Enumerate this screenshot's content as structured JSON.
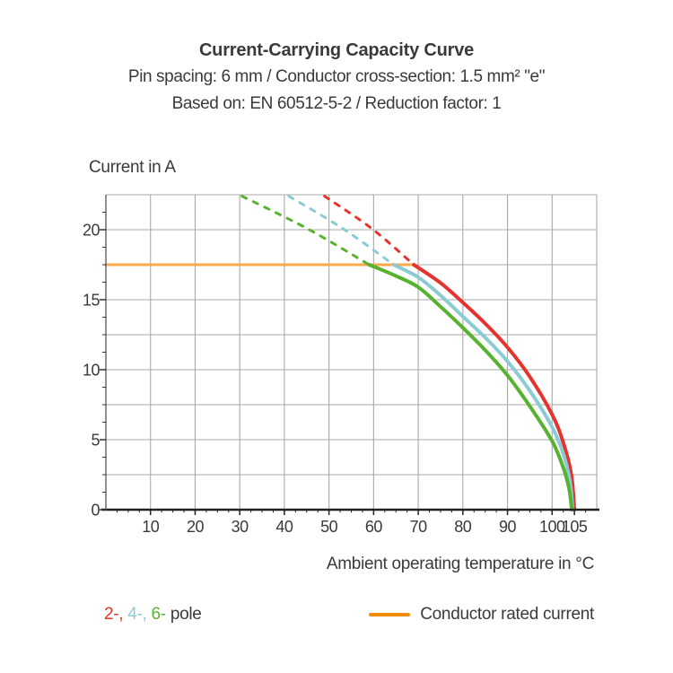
{
  "header": {
    "title": "Current-Carrying Capacity Curve",
    "subtitle_spec": "Pin spacing: 6 mm / Conductor cross-section: 1.5 mm² \"e\"",
    "subtitle_basis": "Based on: EN 60512-5-2 / Reduction factor: 1"
  },
  "legend": {
    "pole_items": [
      {
        "label": "2-,",
        "color": "#E5332D"
      },
      {
        "label": "4-,",
        "color": "#8BCBD3"
      },
      {
        "label": "6-",
        "color": "#57B32F"
      }
    ],
    "pole_suffix": "pole",
    "rated_label": "Conductor rated current",
    "rated_color": "#F28C00"
  },
  "colors": {
    "pole_2": "#E5332D",
    "pole_4": "#8BCBD3",
    "pole_6": "#57B32F",
    "rated_current_line": "#F9A94B",
    "grid": "#A9A9A9",
    "axis": "#222222",
    "text": "#3A3A39"
  },
  "chart_data": {
    "type": "line",
    "title": "Current-Carrying Capacity Curve",
    "xlabel": "Ambient operating temperature in °C",
    "ylabel": "Current in A",
    "xlim": [
      0,
      110
    ],
    "ylim": [
      0,
      22.5
    ],
    "x_tick_labels": [
      10,
      20,
      30,
      40,
      50,
      60,
      70,
      80,
      90,
      100,
      105
    ],
    "y_tick_labels": [
      0,
      5,
      10,
      15,
      20
    ],
    "x_grid_step": 10,
    "y_grid_step": 2.5,
    "x_minor_step": 2.5,
    "y_minor_step": 1.25,
    "grid": true,
    "legend_position": "bottom",
    "series": [
      {
        "name": "conductor-rated-current",
        "color": "#F9A94B",
        "style": "solid",
        "width": 3,
        "points": [
          [
            0,
            17.5
          ],
          [
            69,
            17.5
          ]
        ]
      },
      {
        "name": "2-pole-extrapolation",
        "color": "#E5332D",
        "style": "dashed",
        "width": 3,
        "points": [
          [
            49,
            22.4
          ],
          [
            59.5,
            20.1
          ],
          [
            69,
            17.5
          ]
        ]
      },
      {
        "name": "4-pole-extrapolation",
        "color": "#8BCBD3",
        "style": "dashed",
        "width": 3,
        "points": [
          [
            41,
            22.4
          ],
          [
            53,
            20.1
          ],
          [
            64.5,
            17.5
          ]
        ]
      },
      {
        "name": "6-pole-extrapolation",
        "color": "#57B32F",
        "style": "dashed",
        "width": 3,
        "points": [
          [
            30.5,
            22.4
          ],
          [
            45,
            20.1
          ],
          [
            59,
            17.5
          ]
        ]
      },
      {
        "name": "2-pole",
        "color": "#E5332D",
        "style": "solid",
        "width": 4,
        "points": [
          [
            69,
            17.5
          ],
          [
            75,
            16.2
          ],
          [
            80,
            14.8
          ],
          [
            85,
            13.3
          ],
          [
            90,
            11.6
          ],
          [
            95,
            9.5
          ],
          [
            100,
            6.8
          ],
          [
            102.5,
            4.8
          ],
          [
            104.3,
            2.5
          ],
          [
            105,
            0
          ]
        ]
      },
      {
        "name": "4-pole",
        "color": "#8BCBD3",
        "style": "solid",
        "width": 4,
        "points": [
          [
            64.5,
            17.5
          ],
          [
            70,
            16.6
          ],
          [
            75,
            15.3
          ],
          [
            80,
            13.8
          ],
          [
            85,
            12.3
          ],
          [
            90,
            10.6
          ],
          [
            95,
            8.5
          ],
          [
            100,
            5.9
          ],
          [
            102.5,
            4.0
          ],
          [
            104,
            2.0
          ],
          [
            104.6,
            0
          ]
        ]
      },
      {
        "name": "6-pole",
        "color": "#57B32F",
        "style": "solid",
        "width": 4,
        "points": [
          [
            59,
            17.5
          ],
          [
            65,
            16.7
          ],
          [
            70,
            15.9
          ],
          [
            75,
            14.5
          ],
          [
            80,
            13.0
          ],
          [
            85,
            11.4
          ],
          [
            90,
            9.6
          ],
          [
            95,
            7.4
          ],
          [
            100,
            4.9
          ],
          [
            102.5,
            3.0
          ],
          [
            103.8,
            1.5
          ],
          [
            104.4,
            0
          ]
        ]
      }
    ]
  }
}
